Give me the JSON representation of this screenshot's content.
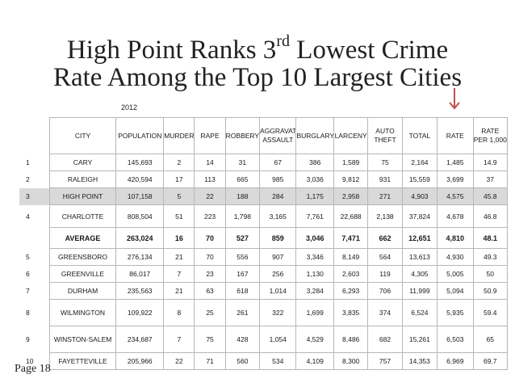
{
  "title": {
    "line1_pre": "High Point Ranks 3",
    "line1_sup": "rd",
    "line1_post": " Lowest Crime",
    "line2": "Rate Among the Top 10 Largest Cities"
  },
  "year": "2012",
  "arrow_color": "#c0504d",
  "highlight_color": "#d9d9d9",
  "table": {
    "headers": [
      "CITY",
      "POPULATION",
      "MURDER",
      "RAPE",
      "ROBBERY",
      "AGGRAVATED ASSAULT",
      "BURGLARY",
      "LARCENY",
      "AUTO THEFT",
      "TOTAL",
      "RATE",
      "RATE PER 1,000"
    ],
    "rows": [
      {
        "rank": "1",
        "cells": [
          "CARY",
          "145,693",
          "2",
          "14",
          "31",
          "67",
          "386",
          "1,589",
          "75",
          "2,164",
          "1,485",
          "14.9"
        ]
      },
      {
        "rank": "2",
        "cells": [
          "RALEIGH",
          "420,594",
          "17",
          "113",
          "665",
          "985",
          "3,036",
          "9,812",
          "931",
          "15,559",
          "3,699",
          "37"
        ]
      },
      {
        "rank": "3",
        "cells": [
          "HIGH POINT",
          "107,158",
          "5",
          "22",
          "188",
          "284",
          "1,175",
          "2,958",
          "271",
          "4,903",
          "4,575",
          "45.8"
        ]
      },
      {
        "rank": "4",
        "cells": [
          "CHARLOTTE",
          "808,504",
          "51",
          "223",
          "1,798",
          "3,165",
          "7,761",
          "22,688",
          "2,138",
          "37,824",
          "4,678",
          "46.8"
        ]
      },
      {
        "rank": "",
        "cells": [
          "AVERAGE",
          "263,024",
          "16",
          "70",
          "527",
          "859",
          "3,046",
          "7,471",
          "662",
          "12,651",
          "4,810",
          "48.1"
        ]
      },
      {
        "rank": "5",
        "cells": [
          "GREENSBORO",
          "276,134",
          "21",
          "70",
          "556",
          "907",
          "3,346",
          "8,149",
          "564",
          "13,613",
          "4,930",
          "49.3"
        ]
      },
      {
        "rank": "6",
        "cells": [
          "GREENVILLE",
          "86,017",
          "7",
          "23",
          "167",
          "256",
          "1,130",
          "2,603",
          "119",
          "4,305",
          "5,005",
          "50"
        ]
      },
      {
        "rank": "7",
        "cells": [
          "DURHAM",
          "235,563",
          "21",
          "63",
          "618",
          "1,014",
          "3,284",
          "6,293",
          "706",
          "11,999",
          "5,094",
          "50.9"
        ]
      },
      {
        "rank": "8",
        "cells": [
          "WILMINGTON",
          "109,922",
          "8",
          "25",
          "261",
          "322",
          "1,699",
          "3,835",
          "374",
          "6,524",
          "5,935",
          "59.4"
        ]
      },
      {
        "rank": "9",
        "cells": [
          "WINSTON-SALEM",
          "234,687",
          "7",
          "75",
          "428",
          "1,054",
          "4,529",
          "8,486",
          "682",
          "15,261",
          "6,503",
          "65"
        ]
      },
      {
        "rank": "10",
        "cells": [
          "FAYETTEVILLE",
          "205,966",
          "22",
          "71",
          "560",
          "534",
          "4,109",
          "8,300",
          "757",
          "14,353",
          "6,969",
          "69.7"
        ]
      }
    ]
  },
  "page_label": "Page 18"
}
